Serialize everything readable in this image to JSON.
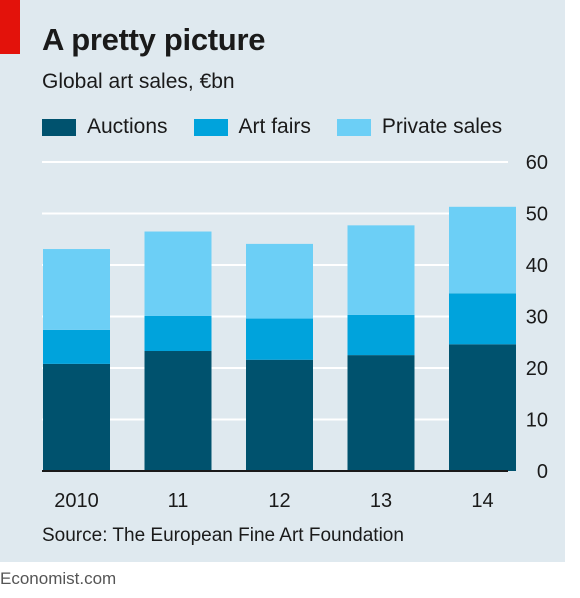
{
  "header": {
    "title": "A pretty picture",
    "subtitle": "Global art sales, €bn"
  },
  "source": "Source: The European Fine Art Foundation",
  "footer": "Economist.com",
  "colors": {
    "panel": "#dfe9ef",
    "accent": "#e3120b",
    "auctions": "#00526e",
    "art_fairs": "#00a3dc",
    "private_sales": "#6ccff6",
    "gridline": "#ffffff",
    "baseline": "#1a1a1a"
  },
  "chart_data": {
    "type": "bar",
    "stacked": true,
    "title": "A pretty picture",
    "subtitle": "Global art sales, €bn",
    "categories": [
      "2010",
      "11",
      "12",
      "13",
      "14"
    ],
    "series": [
      {
        "name": "Auctions",
        "values": [
          20.8,
          23.3,
          21.6,
          22.5,
          24.6
        ]
      },
      {
        "name": "Art fairs",
        "values": [
          6.6,
          6.8,
          8.0,
          7.8,
          9.9
        ]
      },
      {
        "name": "Private sales",
        "values": [
          15.7,
          16.4,
          14.5,
          17.4,
          16.8
        ]
      }
    ],
    "ylim": [
      0,
      60
    ],
    "yticks": [
      "0",
      "10",
      "20",
      "30",
      "40",
      "50",
      "60"
    ],
    "y_axis_position": "right",
    "grid": true,
    "legend_position": "top-left"
  }
}
